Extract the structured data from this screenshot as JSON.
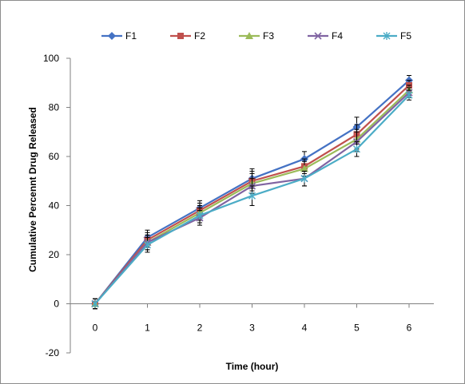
{
  "chart_data": {
    "type": "line",
    "title": "",
    "xlabel": "Time (hour)",
    "ylabel": "Cumulative Percennt Drug Released",
    "x": [
      0,
      1,
      2,
      3,
      4,
      5,
      6
    ],
    "x_tick_labels": [
      "0",
      "1",
      "2",
      "3",
      "4",
      "5",
      "6"
    ],
    "ylim": [
      -20,
      100
    ],
    "xlim": [
      0,
      6
    ],
    "y_ticks": [
      -20,
      0,
      20,
      40,
      60,
      80,
      100
    ],
    "y_tick_labels": [
      "-20",
      "0",
      "20",
      "40",
      "60",
      "80",
      "100"
    ],
    "grid": false,
    "legend_position": "top",
    "error_bars": true,
    "series": [
      {
        "name": "F1",
        "color": "#4472C4",
        "marker": "diamond",
        "values": [
          0,
          27,
          39,
          51,
          59,
          72,
          91
        ],
        "errors": [
          2,
          3,
          3,
          4,
          3,
          4,
          2
        ]
      },
      {
        "name": "F2",
        "color": "#C0504D",
        "marker": "square",
        "values": [
          0,
          26,
          38,
          50,
          56,
          69,
          89
        ],
        "errors": [
          2,
          3,
          3,
          4,
          3,
          4,
          2
        ]
      },
      {
        "name": "F3",
        "color": "#9BBB59",
        "marker": "triangle",
        "values": [
          0,
          25,
          37,
          49,
          55,
          67,
          87
        ],
        "errors": [
          2,
          3,
          3,
          4,
          3,
          4,
          2
        ]
      },
      {
        "name": "F4",
        "color": "#8064A2",
        "marker": "x",
        "values": [
          0,
          25,
          35,
          48,
          51,
          66,
          86
        ],
        "errors": [
          2,
          3,
          3,
          3,
          3,
          4,
          2
        ]
      },
      {
        "name": "F5",
        "color": "#4BACC6",
        "marker": "star",
        "values": [
          0,
          24,
          36,
          44,
          51,
          63,
          85
        ],
        "errors": [
          2,
          3,
          3,
          4,
          3,
          3,
          2
        ]
      }
    ]
  }
}
